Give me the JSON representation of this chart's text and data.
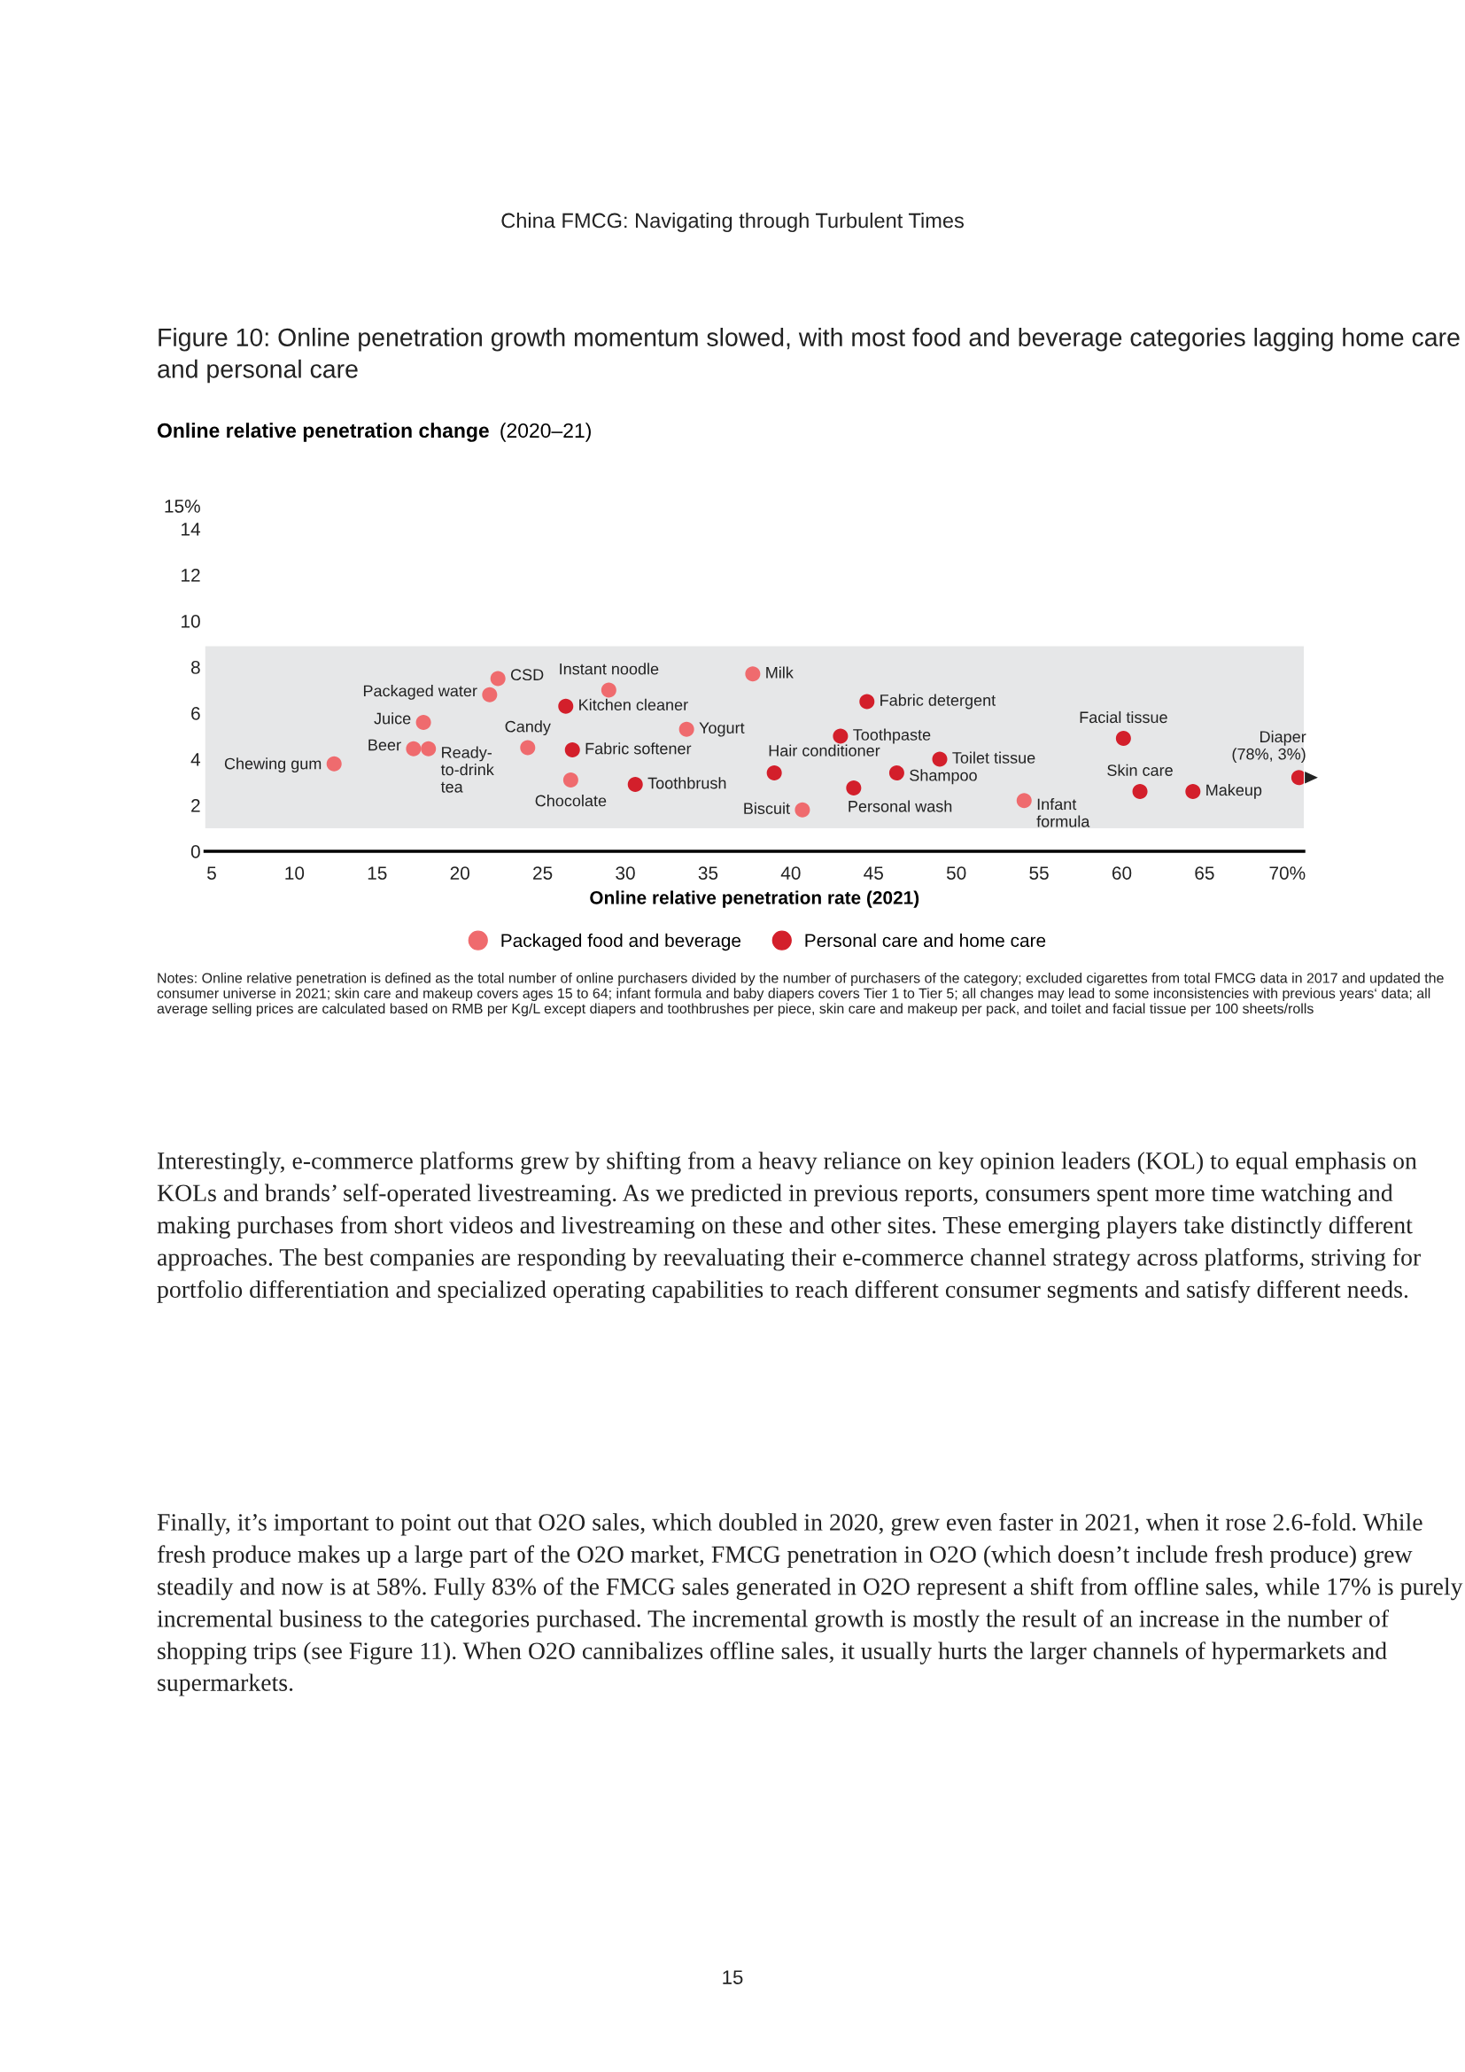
{
  "chart_data": {
    "type": "scatter",
    "title": "Figure 10: Online penetration growth momentum slowed, with most food and beverage categories lagging home care and personal care",
    "subtitle": "Online relative penetration change (2020–21)",
    "xlabel": "Online relative penetration rate (2021)",
    "xlim": [
      4.6,
      71
    ],
    "xticks": [
      5,
      10,
      15,
      20,
      25,
      30,
      35,
      40,
      45,
      50,
      55,
      60,
      65,
      {
        "value": 70,
        "label": "70%"
      }
    ],
    "ylim": [
      0,
      15
    ],
    "yticks": [
      0,
      2,
      4,
      6,
      8,
      10,
      12,
      14,
      {
        "value": 15,
        "label": "15%"
      }
    ],
    "grid": false,
    "legend": "bottom",
    "marker": "circle",
    "bands": [
      {
        "axis": "y",
        "from": 1.0,
        "to": 8.9,
        "color": "#e6e7e8"
      }
    ],
    "series": [
      {
        "name": "Packaged food and beverage",
        "color": "#ef6b6e",
        "x": [
          22.3,
          21.8,
          17.8,
          17.2,
          18.1,
          12.4,
          24.1,
          26.7,
          29.0,
          33.7,
          37.7,
          40.7,
          54.1
        ],
        "values": [
          7.5,
          6.8,
          5.6,
          4.45,
          4.45,
          3.8,
          4.5,
          3.1,
          7.0,
          5.3,
          7.7,
          1.8,
          2.2
        ]
      },
      {
        "name": "Personal care and home care",
        "color": "#d31f2b",
        "x": [
          26.4,
          26.8,
          30.6,
          39.0,
          44.6,
          43.0,
          43.8,
          46.4,
          49.0,
          60.1,
          61.1,
          64.3,
          70.7
        ],
        "values": [
          6.3,
          4.4,
          2.9,
          3.4,
          6.5,
          5.0,
          2.75,
          3.4,
          4.0,
          4.9,
          2.6,
          2.6,
          3.2
        ]
      }
    ],
    "annotations": [
      "China FMCG: Navigating through Turbulent Times",
      "Notes: Online relative penetration is defined as the total number of online purchasers divided by the number of purchasers of the category; excluded cigarettes from total FMCG data in 2017 and updated the consumer universe in 2021; skin care and makeup covers ages 15 to 64; infant formula and baby diapers covers Tier 1 to Tier 5; all changes may lead to some inconsistencies with previous years‘ data; all average selling prices are calculated based on RMB per Kg/L except diapers and toothbrushes per piece, skin care and makeup per pack, and toilet and facial tissue per 100 sheets/rolls",
      "Interestingly, e-commerce platforms grew by shifting from a heavy reliance on key opinion leaders (KOL) to equal emphasis on KOLs and brands’ self-operated livestreaming. As we predicted in previous reports, consumers spent more time watching and making purchases from short videos and livestreaming on these and other sites. These emerging players take distinctly different approaches. The best companies are responding by reevaluating their e-commerce channel strategy across platforms, striving for portfolio differentiation and specialized operating capabilities to reach different consumer segments and satisfy different needs.",
      "Finally, it’s important to point out that O2O sales, which doubled in 2020, grew even faster in 2021, when it rose 2.6-fold. While fresh produce makes up a large part of the O2O market, FMCG penetration in O2O (which doesn’t include fresh produce) grew steadily and now is at 58%. Fully 83% of the FMCG sales generated in O2O represent a shift from offline sales, while 17% is purely incremental business to the categories purchased. The incremental growth is mostly the result of an increase in the number of shopping trips (see Figure 11). When O2O cannibalizes offline sales, it usually hurts the larger channels of hypermarkets and supermarkets.",
      "15",
      {
        "text": "CSD",
        "x": 22.3,
        "y": 7.5
      },
      {
        "text": "Packaged water",
        "x": 21.8,
        "y": 6.8
      },
      {
        "text": "Juice",
        "x": 17.8,
        "y": 5.6
      },
      {
        "text": "Beer",
        "x": 17.2,
        "y": 4.45
      },
      {
        "text": "Ready-\nto-drink\ntea",
        "x": 18.1,
        "y": 4.45
      },
      {
        "text": "Chewing gum",
        "x": 12.4,
        "y": 3.8
      },
      {
        "text": "Candy",
        "x": 24.1,
        "y": 4.5
      },
      {
        "text": "Chocolate",
        "x": 26.7,
        "y": 3.1
      },
      {
        "text": "Instant noodle",
        "x": 29.0,
        "y": 7.0
      },
      {
        "text": "Kitchen cleaner",
        "x": 26.4,
        "y": 6.3
      },
      {
        "text": "Fabric softener",
        "x": 26.8,
        "y": 4.4
      },
      {
        "text": "Toothbrush",
        "x": 30.6,
        "y": 2.9
      },
      {
        "text": "Yogurt",
        "x": 33.7,
        "y": 5.3
      },
      {
        "text": "Milk",
        "x": 37.7,
        "y": 7.7
      },
      {
        "text": "Hair conditioner",
        "x": 39.0,
        "y": 3.4
      },
      {
        "text": "Biscuit",
        "x": 40.7,
        "y": 1.8
      },
      {
        "text": "Fabric detergent",
        "x": 44.6,
        "y": 6.5
      },
      {
        "text": "Toothpaste",
        "x": 43.0,
        "y": 5.0
      },
      {
        "text": "Personal wash",
        "x": 43.8,
        "y": 2.75
      },
      {
        "text": "Shampoo",
        "x": 46.4,
        "y": 3.4
      },
      {
        "text": "Toilet tissue",
        "x": 49.0,
        "y": 4.0
      },
      {
        "text": "Infant\nformula",
        "x": 54.1,
        "y": 2.2
      },
      {
        "text": "Facial tissue",
        "x": 60.1,
        "y": 4.9
      },
      {
        "text": "Skin care",
        "x": 61.1,
        "y": 2.6
      },
      {
        "text": "Makeup",
        "x": 64.3,
        "y": 2.6
      },
      {
        "text": "Diaper\n(78%, 3%)",
        "x": 70.7,
        "y": 3.2
      }
    ]
  }
}
